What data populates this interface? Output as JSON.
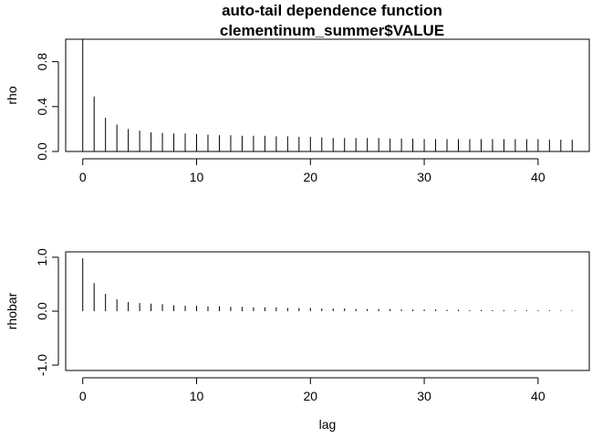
{
  "title_line1": "auto-tail dependence function",
  "title_line2": "clementinum_summer$VALUE",
  "chart_data": [
    {
      "type": "bar",
      "panel": "top",
      "xlabel": "lag",
      "ylabel": "rho",
      "xlim": [
        -1.5,
        44.5
      ],
      "ylim": [
        0,
        1
      ],
      "x_ticks": [
        0,
        10,
        20,
        30,
        40
      ],
      "y_ticks": [
        0.0,
        0.4,
        0.8
      ],
      "y_tick_labels": [
        "0.0",
        "0.4",
        "0.8"
      ],
      "x": [
        0,
        1,
        2,
        3,
        4,
        5,
        6,
        7,
        8,
        9,
        10,
        11,
        12,
        13,
        14,
        15,
        16,
        17,
        18,
        19,
        20,
        21,
        22,
        23,
        24,
        25,
        26,
        27,
        28,
        29,
        30,
        31,
        32,
        33,
        34,
        35,
        36,
        37,
        38,
        39,
        40,
        41,
        42,
        43
      ],
      "values": [
        1.0,
        0.49,
        0.3,
        0.24,
        0.2,
        0.185,
        0.17,
        0.165,
        0.16,
        0.16,
        0.155,
        0.15,
        0.145,
        0.145,
        0.14,
        0.14,
        0.14,
        0.135,
        0.135,
        0.13,
        0.13,
        0.125,
        0.12,
        0.12,
        0.12,
        0.12,
        0.12,
        0.115,
        0.115,
        0.115,
        0.11,
        0.11,
        0.11,
        0.11,
        0.11,
        0.11,
        0.11,
        0.11,
        0.11,
        0.11,
        0.11,
        0.105,
        0.105,
        0.105
      ]
    },
    {
      "type": "bar",
      "panel": "bottom",
      "xlabel": "lag",
      "ylabel": "rhobar",
      "xlim": [
        -1.5,
        44.5
      ],
      "ylim": [
        -1.1,
        1.1
      ],
      "x_ticks": [
        0,
        10,
        20,
        30,
        40
      ],
      "y_ticks": [
        -1.0,
        0.0,
        1.0
      ],
      "y_tick_labels": [
        "-1.0",
        "0.0",
        "1.0"
      ],
      "x": [
        0,
        1,
        2,
        3,
        4,
        5,
        6,
        7,
        8,
        9,
        10,
        11,
        12,
        13,
        14,
        15,
        16,
        17,
        18,
        19,
        20,
        21,
        22,
        23,
        24,
        25,
        26,
        27,
        28,
        29,
        30,
        31,
        32,
        33,
        34,
        35,
        36,
        37,
        38,
        39,
        40,
        41,
        42,
        43
      ],
      "values": [
        0.98,
        0.52,
        0.32,
        0.22,
        0.17,
        0.15,
        0.14,
        0.13,
        0.11,
        0.1,
        0.1,
        0.09,
        0.09,
        0.08,
        0.08,
        0.07,
        0.07,
        0.07,
        0.06,
        0.06,
        0.06,
        0.05,
        0.05,
        0.05,
        0.04,
        0.04,
        0.04,
        0.04,
        0.03,
        0.03,
        0.03,
        0.03,
        0.025,
        0.025,
        0.02,
        0.02,
        0.02,
        0.02,
        0.015,
        0.015,
        0.015,
        0.015,
        0.01,
        0.01
      ]
    }
  ]
}
